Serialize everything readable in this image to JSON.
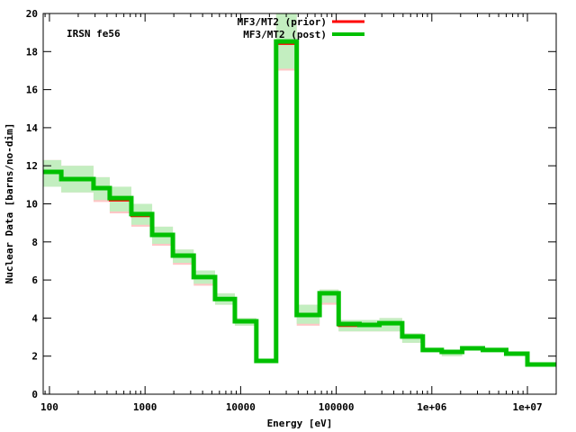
{
  "chart_data": {
    "type": "line",
    "style": "step-histogram",
    "title": "",
    "annotation": "IRSN fe56",
    "xlabel": "Energy [eV]",
    "ylabel": "Nuclear Data [barns/no-dim]",
    "xscale": "log",
    "xlim": [
      86,
      20000000
    ],
    "ylim": [
      0,
      20
    ],
    "grid": false,
    "legend_position": "top-center",
    "x_ticks": [
      {
        "value": 100,
        "label": "100"
      },
      {
        "value": 1000,
        "label": "1000"
      },
      {
        "value": 10000,
        "label": "10000"
      },
      {
        "value": 100000,
        "label": "100000"
      },
      {
        "value": 1000000,
        "label": "1e+06"
      },
      {
        "value": 10000000,
        "label": "1e+07"
      }
    ],
    "y_ticks": [
      0,
      2,
      4,
      6,
      8,
      10,
      12,
      14,
      16,
      18,
      20
    ],
    "bin_edges": [
      86,
      133,
      289,
      427,
      719,
      1186,
      1955,
      3227,
      5400,
      8700,
      14600,
      23500,
      38600,
      67000,
      106000,
      175000,
      283000,
      490000,
      805000,
      1270000,
      2080000,
      3420000,
      6000000,
      10000000,
      20000000
    ],
    "series": [
      {
        "name": "MF3/MT2 (prior)",
        "color": "#ff0000",
        "band_color": "#ffc0c0",
        "values": [
          11.68,
          11.3,
          10.83,
          10.17,
          9.35,
          8.37,
          7.28,
          6.15,
          5.0,
          3.83,
          1.75,
          18.4,
          4.16,
          5.3,
          3.58,
          3.64,
          3.73,
          3.03,
          2.32,
          2.22,
          2.41,
          2.32,
          2.13,
          1.56
        ],
        "lo": [
          10.9,
          10.6,
          10.1,
          9.5,
          8.8,
          7.8,
          6.8,
          5.7,
          4.7,
          3.6,
          1.7,
          17.0,
          3.6,
          4.7,
          3.3,
          3.3,
          3.3,
          2.7,
          2.2,
          2.0,
          2.3,
          2.3,
          2.05,
          1.5
        ],
        "hi": [
          12.3,
          12.0,
          11.4,
          10.9,
          10.0,
          8.8,
          7.6,
          6.5,
          5.3,
          4.0,
          1.8,
          20.0,
          4.7,
          5.5,
          3.9,
          3.9,
          4.0,
          3.2,
          2.4,
          2.3,
          2.5,
          2.4,
          2.2,
          1.6
        ]
      },
      {
        "name": "MF3/MT2 (post)",
        "color": "#00c000",
        "band_color": "#c0f0c0",
        "values": [
          11.68,
          11.3,
          10.83,
          10.3,
          9.46,
          8.37,
          7.28,
          6.15,
          5.0,
          3.83,
          1.75,
          18.53,
          4.16,
          5.3,
          3.69,
          3.64,
          3.73,
          3.03,
          2.32,
          2.22,
          2.41,
          2.32,
          2.13,
          1.56
        ],
        "lo": [
          10.9,
          10.6,
          10.2,
          9.6,
          8.9,
          7.9,
          6.9,
          5.8,
          4.7,
          3.6,
          1.7,
          17.1,
          3.7,
          4.8,
          3.3,
          3.3,
          3.3,
          2.7,
          2.2,
          2.0,
          2.3,
          2.3,
          2.05,
          1.5
        ],
        "hi": [
          12.3,
          12.0,
          11.4,
          10.9,
          10.0,
          8.8,
          7.6,
          6.5,
          5.3,
          4.0,
          1.8,
          20.0,
          4.7,
          5.5,
          3.9,
          3.9,
          4.0,
          3.2,
          2.4,
          2.3,
          2.5,
          2.4,
          2.2,
          1.6
        ]
      }
    ]
  }
}
